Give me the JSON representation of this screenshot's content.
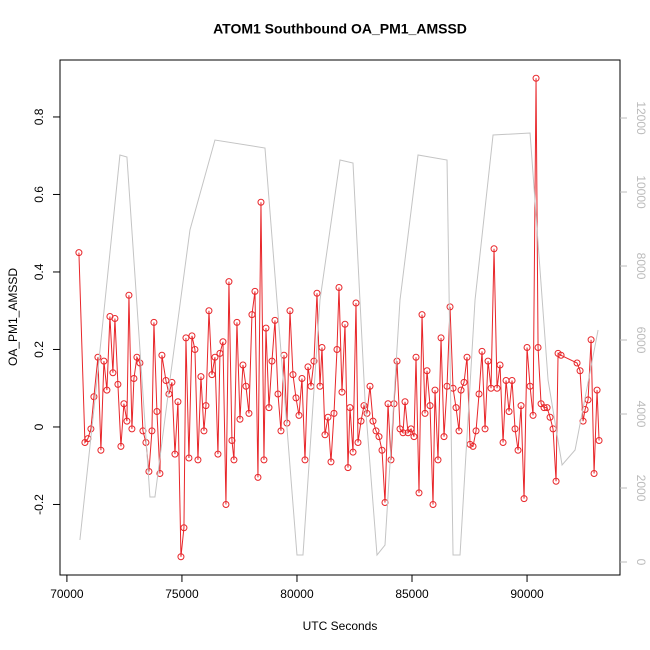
{
  "chart_data": {
    "type": "line",
    "title": "ATOM1 Southbound OA_PM1_AMSSD",
    "xlabel": "UTC Seconds",
    "ylabel": "OA_PM1_AMSSD",
    "xlim": [
      69700,
      94040
    ],
    "xticks": [
      70000,
      75000,
      80000,
      85000,
      90000
    ],
    "ylim": [
      -0.382,
      0.947
    ],
    "yticks": [
      -0.2,
      0,
      0.2,
      0.4,
      0.6,
      0.8
    ],
    "y2lim": [
      -351,
      13568
    ],
    "y2ticks": [
      0,
      2000,
      4000,
      6000,
      8000,
      10000,
      12000
    ],
    "series": [
      {
        "color": "#e8262a",
        "markers": true,
        "x": [
          70522,
          70783,
          70913,
          71043,
          71174,
          71348,
          71478,
          71609,
          71739,
          71870,
          72000,
          72087,
          72217,
          72348,
          72478,
          72609,
          72696,
          72826,
          72913,
          73043,
          73174,
          73304,
          73435,
          73565,
          73696,
          73783,
          73913,
          74043,
          74130,
          74304,
          74435,
          74565,
          74696,
          74826,
          74957,
          75087,
          75174,
          75304,
          75435,
          75565,
          75696,
          75826,
          75957,
          76043,
          76174,
          76304,
          76435,
          76565,
          76652,
          76783,
          76913,
          77043,
          77174,
          77261,
          77391,
          77522,
          77652,
          77783,
          77913,
          78043,
          78174,
          78304,
          78435,
          78565,
          78652,
          78783,
          78913,
          79043,
          79174,
          79304,
          79435,
          79565,
          79696,
          79826,
          79957,
          80087,
          80217,
          80348,
          80478,
          80609,
          80739,
          80870,
          81000,
          81087,
          81217,
          81348,
          81478,
          81609,
          81739,
          81826,
          81957,
          82087,
          82217,
          82304,
          82435,
          82565,
          82652,
          82783,
          82913,
          83043,
          83174,
          83304,
          83435,
          83565,
          83696,
          83826,
          83957,
          84087,
          84217,
          84348,
          84478,
          84609,
          84696,
          84826,
          84957,
          85087,
          85174,
          85304,
          85435,
          85565,
          85652,
          85783,
          85913,
          86000,
          86130,
          86261,
          86391,
          86522,
          86652,
          86783,
          86913,
          87043,
          87130,
          87261,
          87391,
          87522,
          87652,
          87783,
          87913,
          88043,
          88174,
          88304,
          88435,
          88565,
          88696,
          88826,
          88957,
          89087,
          89217,
          89348,
          89478,
          89609,
          89739,
          89870,
          90000,
          90130,
          90261,
          90391,
          90478,
          90609,
          90739,
          90870,
          91000,
          91130,
          91261,
          91348,
          91478,
          92174,
          92304,
          92435,
          92522,
          92652,
          92783,
          92913,
          93043,
          93130
        ],
        "values": [
          0.45,
          -0.04,
          -0.03,
          -0.005,
          0.078,
          0.18,
          -0.06,
          0.17,
          0.095,
          0.285,
          0.14,
          0.28,
          0.11,
          -0.05,
          0.06,
          0.015,
          0.34,
          -0.005,
          0.125,
          0.18,
          0.165,
          -0.01,
          -0.04,
          -0.115,
          -0.01,
          0.27,
          0.04,
          -0.12,
          0.185,
          0.12,
          0.085,
          0.115,
          -0.07,
          0.065,
          -0.335,
          -0.26,
          0.23,
          -0.08,
          0.235,
          0.2,
          -0.085,
          0.13,
          -0.01,
          0.055,
          0.3,
          0.135,
          0.18,
          -0.07,
          0.19,
          0.22,
          -0.2,
          0.375,
          -0.035,
          -0.085,
          0.27,
          0.02,
          0.16,
          0.105,
          0.035,
          0.29,
          0.35,
          -0.13,
          0.58,
          -0.085,
          0.255,
          0.05,
          0.17,
          0.275,
          0.085,
          -0.01,
          0.185,
          0.01,
          0.3,
          0.135,
          0.075,
          0.03,
          0.125,
          -0.085,
          0.155,
          0.105,
          0.17,
          0.345,
          0.105,
          0.205,
          -0.02,
          0.025,
          -0.09,
          0.035,
          0.2,
          0.36,
          0.09,
          0.265,
          -0.105,
          0.05,
          -0.065,
          0.32,
          -0.04,
          0.015,
          0.055,
          0.035,
          0.105,
          0.015,
          -0.01,
          -0.025,
          -0.06,
          -0.195,
          0.06,
          -0.085,
          0.06,
          0.17,
          -0.005,
          -0.015,
          0.065,
          -0.015,
          -0.005,
          -0.025,
          0.18,
          -0.17,
          0.29,
          0.035,
          0.145,
          0.055,
          -0.2,
          0.095,
          -0.085,
          0.23,
          -0.025,
          0.105,
          0.31,
          0.1,
          0.05,
          -0.01,
          0.095,
          0.115,
          0.18,
          -0.045,
          -0.05,
          -0.01,
          0.085,
          0.195,
          -0.005,
          0.17,
          0.1,
          0.46,
          0.1,
          0.16,
          -0.04,
          0.12,
          0.04,
          0.12,
          -0.005,
          -0.06,
          0.055,
          -0.185,
          0.205,
          0.105,
          0.03,
          0.9,
          0.205,
          0.06,
          0.05,
          0.05,
          0.025,
          -0.005,
          -0.14,
          0.19,
          0.185,
          0.165,
          0.145,
          0.015,
          0.045,
          0.07,
          0.225,
          -0.12,
          0.095,
          -0.035
        ]
      },
      {
        "color": "#c4c4c4",
        "axis": "y2",
        "x": [
          70565,
          71217,
          72304,
          72609,
          73609,
          73826,
          74478,
          75348,
          76435,
          78609,
          80000,
          80261,
          81000,
          81870,
          82435,
          82957,
          83478,
          83826,
          84478,
          85261,
          86522,
          86783,
          87087,
          87739,
          88522,
          90130,
          90913,
          91522,
          92087,
          93087
        ],
        "values": [
          595,
          4378,
          11000,
          10946,
          1757,
          1757,
          4919,
          8973,
          11405,
          11189,
          189,
          189,
          7081,
          10865,
          10784,
          4378,
          189,
          459,
          7081,
          11000,
          10865,
          189,
          189,
          7081,
          11541,
          11595,
          4919,
          2622,
          3027,
          6270
        ]
      }
    ]
  }
}
